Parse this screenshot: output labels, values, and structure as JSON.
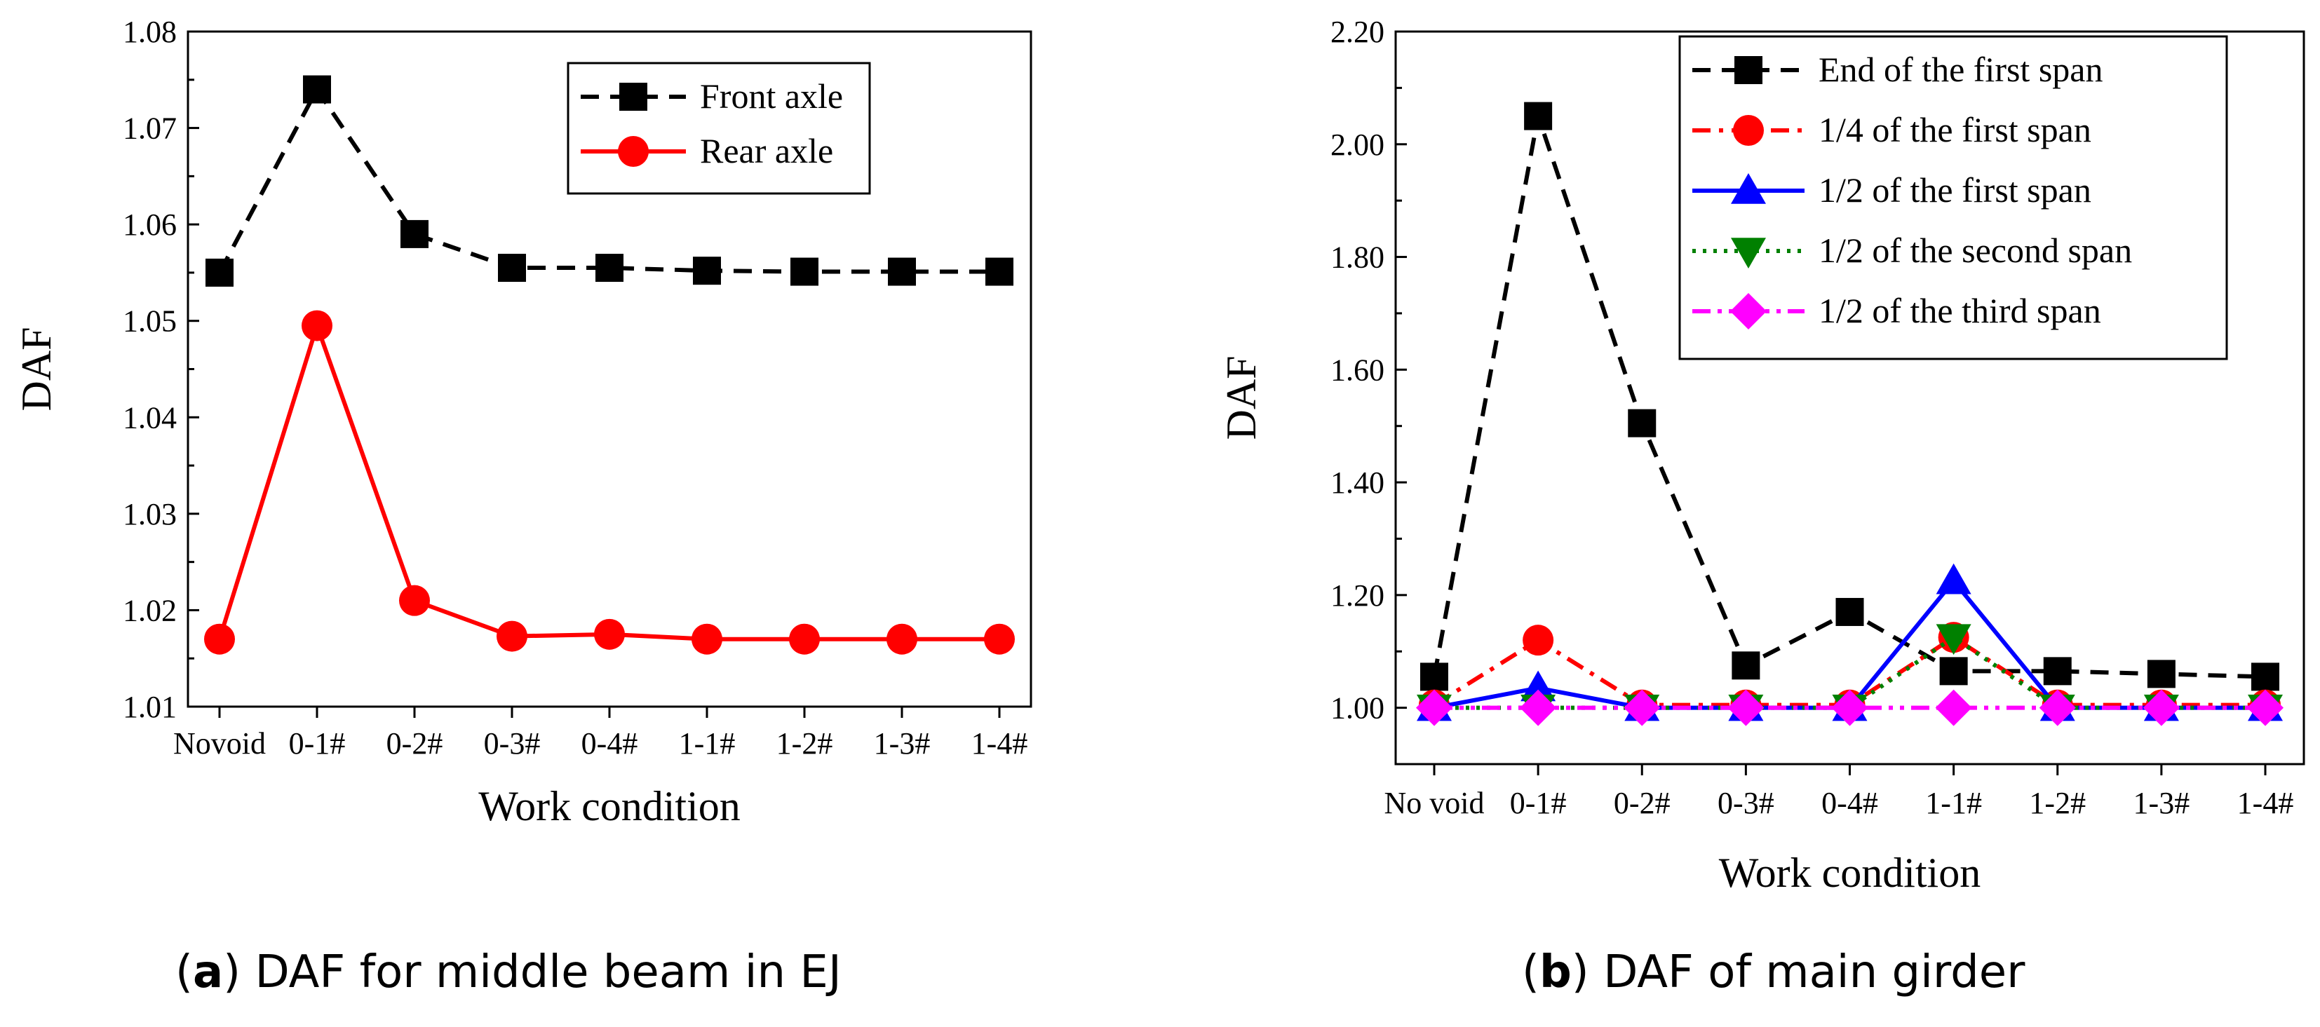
{
  "captions": {
    "a": {
      "open": "(",
      "letter": "a",
      "rest": ") DAF for middle beam in EJ"
    },
    "b": {
      "open": "(",
      "letter": "b",
      "rest": ") DAF of main girder"
    }
  },
  "chart_data": [
    {
      "type": "line",
      "xlabel": "Work condition",
      "ylabel": "DAF",
      "categories": [
        "Novoid",
        "0-1#",
        "0-2#",
        "0-3#",
        "0-4#",
        "1-1#",
        "1-2#",
        "1-3#",
        "1-4#"
      ],
      "ylim": [
        1.01,
        1.08
      ],
      "yticks": [
        "1.01",
        "1.02",
        "1.03",
        "1.04",
        "1.05",
        "1.06",
        "1.07",
        "1.08"
      ],
      "grid": false,
      "legend_position": "top-right",
      "series": [
        {
          "name": "Front axle",
          "color": "#000000",
          "marker": "square",
          "dash": "dashed",
          "values": [
            1.055,
            1.074,
            1.059,
            1.0555,
            1.0555,
            1.0552,
            1.0551,
            1.0551,
            1.0551
          ]
        },
        {
          "name": "Rear axle",
          "color": "#ff0000",
          "marker": "circle",
          "dash": "solid",
          "values": [
            1.017,
            1.0495,
            1.021,
            1.0173,
            1.0175,
            1.017,
            1.017,
            1.017,
            1.017
          ]
        }
      ]
    },
    {
      "type": "line",
      "xlabel": "Work condition",
      "ylabel": "DAF",
      "categories": [
        "No void",
        "0-1#",
        "0-2#",
        "0-3#",
        "0-4#",
        "1-1#",
        "1-2#",
        "1-3#",
        "1-4#"
      ],
      "ylim": [
        0.9,
        2.2
      ],
      "yticks": [
        "1.00",
        "1.20",
        "1.40",
        "1.60",
        "1.80",
        "2.00",
        "2.20"
      ],
      "grid": false,
      "legend_position": "top-right",
      "series": [
        {
          "name": "End of the first span",
          "color": "#000000",
          "marker": "square",
          "dash": "dashed",
          "values": [
            1.055,
            2.05,
            1.505,
            1.075,
            1.17,
            1.065,
            1.065,
            1.06,
            1.055
          ]
        },
        {
          "name": "1/4 of the first span",
          "color": "#ff0000",
          "marker": "circle",
          "dash": "dashdot",
          "values": [
            1.005,
            1.12,
            1.005,
            1.005,
            1.005,
            1.125,
            1.005,
            1.005,
            1.005
          ]
        },
        {
          "name": "1/2 of the first span",
          "color": "#0000ff",
          "marker": "triangle-up",
          "dash": "solid",
          "values": [
            1.0,
            1.035,
            1.0,
            1.0,
            1.0,
            1.225,
            1.0,
            1.0,
            1.0
          ]
        },
        {
          "name": "1/2 of the second span",
          "color": "#008000",
          "marker": "triangle-down",
          "dash": "dotted",
          "values": [
            1.0,
            1.0,
            1.0,
            1.0,
            1.0,
            1.125,
            1.0,
            1.0,
            1.0
          ]
        },
        {
          "name": "1/2 of the third span",
          "color": "#ff00ff",
          "marker": "diamond",
          "dash": "dashdotdot",
          "values": [
            1.0,
            1.0,
            1.0,
            1.0,
            1.0,
            1.0,
            1.0,
            1.0,
            1.0
          ]
        }
      ]
    }
  ]
}
